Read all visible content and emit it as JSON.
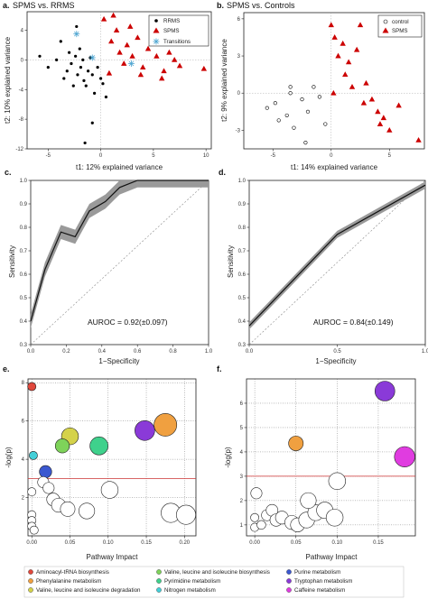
{
  "panels": {
    "a": {
      "label": "a.",
      "title": "SPMS vs. RRMS",
      "xlabel": "t1: 12% explained variance",
      "ylabel": "t2: 10% explained variance",
      "legend": [
        "RRMS",
        "SPMS",
        "Transitions"
      ]
    },
    "b": {
      "label": "b.",
      "title": "SPMS vs. Controls",
      "xlabel": "t1: 14% explained variance",
      "ylabel": "t2: 9% explained variance",
      "legend": [
        "control",
        "SPMS"
      ]
    },
    "c": {
      "label": "c.",
      "xlabel": "1−Specificity",
      "ylabel": "Sensitivity",
      "auroc": "AUROC = 0.92(±0.097)"
    },
    "d": {
      "label": "d.",
      "xlabel": "1−Specificity",
      "ylabel": "Sensitivity",
      "auroc": "AUROC = 0.84(±0.149)"
    },
    "e": {
      "label": "e.",
      "xlabel": "Pathway Impact",
      "ylabel": "-log(p)"
    },
    "f": {
      "label": "f.",
      "xlabel": "Pathway Impact",
      "ylabel": "-log(p)"
    }
  },
  "pathway_legend": [
    {
      "label": "Aminoacyl-tRNA biosynthesis",
      "color": "#e0483c"
    },
    {
      "label": "Phenylalanine metabolism",
      "color": "#f0a040"
    },
    {
      "label": "Valine, leucine and isoleucine degradation",
      "color": "#d4d24a"
    },
    {
      "label": "Valine, leucine and isoleucine biosynthesis",
      "color": "#7ed35a"
    },
    {
      "label": "Pyrimidine metabolism",
      "color": "#3fd18c"
    },
    {
      "label": "Nitrogen metabolism",
      "color": "#43cfd8"
    },
    {
      "label": "Purine metabolism",
      "color": "#3b58d0"
    },
    {
      "label": "Tryptophan metabolism",
      "color": "#8a3ad8"
    },
    {
      "label": "Caffeine metabolism",
      "color": "#e03ce0"
    }
  ],
  "chart_data": [
    {
      "id": "a",
      "type": "scatter",
      "title": "SPMS vs. RRMS",
      "xlabel": "t1: 12% explained variance",
      "ylabel": "t2: 10% explained variance",
      "xlim": [
        -7,
        10.5
      ],
      "ylim": [
        -12,
        6.5
      ],
      "xticks": [
        -5,
        0,
        5,
        10
      ],
      "yticks": [
        4,
        0,
        -4,
        -8,
        -12
      ],
      "legend_position": "top-right",
      "series": [
        {
          "name": "RRMS",
          "marker": "dot",
          "color": "#000000",
          "points": [
            [
              -5.8,
              0.5
            ],
            [
              -5,
              -1
            ],
            [
              -4.2,
              0
            ],
            [
              -3.8,
              2.5
            ],
            [
              -3.5,
              -2.5
            ],
            [
              -3.2,
              -1.5
            ],
            [
              -3,
              1
            ],
            [
              -2.8,
              -0.5
            ],
            [
              -2.6,
              -3.5
            ],
            [
              -2.4,
              0.5
            ],
            [
              -2.2,
              -2
            ],
            [
              -2,
              1.5
            ],
            [
              -1.9,
              -1
            ],
            [
              -1.7,
              0
            ],
            [
              -1.6,
              -2.8
            ],
            [
              -1.4,
              -3.5
            ],
            [
              -1.2,
              -1.5
            ],
            [
              -1,
              0.3
            ],
            [
              -0.8,
              -2
            ],
            [
              -0.6,
              -4.5
            ],
            [
              -0.3,
              -1
            ],
            [
              0,
              -2.5
            ],
            [
              0.2,
              -3.2
            ],
            [
              0.5,
              -5
            ],
            [
              -2.3,
              4.5
            ],
            [
              -1.5,
              -11.2
            ],
            [
              -0.8,
              -8.5
            ]
          ]
        },
        {
          "name": "SPMS",
          "marker": "triangle",
          "color": "#cc0000",
          "points": [
            [
              0.3,
              5.5
            ],
            [
              1,
              2.5
            ],
            [
              1.5,
              4
            ],
            [
              1.8,
              1
            ],
            [
              2.2,
              -0.5
            ],
            [
              2.5,
              2
            ],
            [
              2.8,
              4.5
            ],
            [
              3,
              0.5
            ],
            [
              3.5,
              3
            ],
            [
              4,
              -1
            ],
            [
              4.5,
              1.5
            ],
            [
              5,
              3.5
            ],
            [
              5.3,
              0.5
            ],
            [
              6,
              -1.5
            ],
            [
              6.5,
              1
            ],
            [
              7,
              0
            ],
            [
              7.5,
              -0.8
            ],
            [
              9.8,
              -1.2
            ],
            [
              1.2,
              6
            ],
            [
              0.8,
              -1.8
            ],
            [
              3.8,
              -2
            ],
            [
              5.8,
              -2.5
            ]
          ]
        },
        {
          "name": "Transitions",
          "marker": "asterisk",
          "color": "#4aa3d0",
          "points": [
            [
              -2.3,
              3.5
            ],
            [
              -0.8,
              0.3
            ],
            [
              2.9,
              -0.5
            ]
          ]
        }
      ]
    },
    {
      "id": "b",
      "type": "scatter",
      "title": "SPMS vs. Controls",
      "xlabel": "t1: 14% explained variance",
      "ylabel": "t2: 9% explained variance",
      "xlim": [
        -7.5,
        8
      ],
      "ylim": [
        -4.5,
        6.5
      ],
      "xticks": [
        -5,
        0,
        5
      ],
      "yticks": [
        6,
        3,
        0,
        -3
      ],
      "legend_position": "top-right",
      "series": [
        {
          "name": "control",
          "marker": "open-circle",
          "color": "#000000",
          "points": [
            [
              -5.5,
              -1.2
            ],
            [
              -4.8,
              -0.8
            ],
            [
              -4.5,
              -2.2
            ],
            [
              -3.8,
              -1.8
            ],
            [
              -3.5,
              0
            ],
            [
              -3.2,
              -2.8
            ],
            [
              -2.5,
              -0.5
            ],
            [
              -2,
              -1.5
            ],
            [
              -1.5,
              0.5
            ],
            [
              -1,
              -0.3
            ],
            [
              -0.5,
              -2.5
            ],
            [
              -3.5,
              0.5
            ],
            [
              -2.2,
              -4
            ]
          ]
        },
        {
          "name": "SPMS",
          "marker": "triangle",
          "color": "#cc0000",
          "points": [
            [
              0,
              5.5
            ],
            [
              0.3,
              4.5
            ],
            [
              0.6,
              3
            ],
            [
              1,
              4
            ],
            [
              1.2,
              1.5
            ],
            [
              1.5,
              2.5
            ],
            [
              1.8,
              0.5
            ],
            [
              2.2,
              3.5
            ],
            [
              2.5,
              5.5
            ],
            [
              3,
              0.8
            ],
            [
              3.5,
              -0.5
            ],
            [
              4,
              -1.5
            ],
            [
              4.5,
              -2
            ],
            [
              5,
              -3
            ],
            [
              5.8,
              -1
            ],
            [
              0.2,
              0
            ],
            [
              7.5,
              -3.8
            ],
            [
              2.8,
              -0.8
            ],
            [
              4.2,
              -2.5
            ]
          ]
        }
      ]
    },
    {
      "id": "c",
      "type": "line",
      "xlabel": "1−Specificity",
      "ylabel": "Sensitivity",
      "xlim": [
        0,
        1
      ],
      "ylim": [
        0.3,
        1
      ],
      "xticks": [
        0.0,
        0.2,
        0.4,
        0.6,
        0.8,
        1.0
      ],
      "yticks": [
        1.0,
        0.9,
        0.8,
        0.7,
        0.6,
        0.5,
        0.4,
        0.3
      ],
      "series": [
        {
          "name": "",
          "x": [
            0,
            0.08,
            0.17,
            0.25,
            0.33,
            0.42,
            0.5,
            0.6,
            1.0
          ],
          "y": [
            0.4,
            0.62,
            0.78,
            0.76,
            0.87,
            0.91,
            0.97,
            1.0,
            1.0
          ],
          "band": 0.03
        }
      ],
      "reference_diagonal": true,
      "annotation": "AUROC = 0.92(±0.097)"
    },
    {
      "id": "d",
      "type": "line",
      "xlabel": "1−Specificity",
      "ylabel": "Sensitivity",
      "xlim": [
        0,
        1
      ],
      "ylim": [
        0.3,
        1
      ],
      "xticks": [
        0.0,
        0.5,
        1.0
      ],
      "yticks": [
        1.0,
        0.9,
        0.8,
        0.7,
        0.6,
        0.5,
        0.4,
        0.3
      ],
      "series": [
        {
          "name": "",
          "x": [
            0,
            0.5,
            1.0
          ],
          "y": [
            0.38,
            0.77,
            0.98
          ],
          "band": 0.015
        }
      ],
      "reference_diagonal": true,
      "annotation": "AUROC = 0.84(±0.149)"
    },
    {
      "id": "e",
      "type": "scatter",
      "xlabel": "Pathway Impact",
      "ylabel": "-log(p)",
      "xlim": [
        -0.005,
        0.215
      ],
      "ylim": [
        0,
        8.2
      ],
      "xticks": [
        0.0,
        0.05,
        0.1,
        0.15,
        0.2
      ],
      "yticks": [
        2,
        4,
        6,
        8
      ],
      "threshold": 3.0,
      "points": [
        {
          "x": 0.0,
          "y": 7.8,
          "size": 0.5,
          "color": "#e0483c"
        },
        {
          "x": 0.175,
          "y": 5.8,
          "size": 3.0,
          "color": "#f0a040"
        },
        {
          "x": 0.05,
          "y": 5.2,
          "size": 2.0,
          "color": "#d4d24a"
        },
        {
          "x": 0.04,
          "y": 4.7,
          "size": 1.5,
          "color": "#7ed35a"
        },
        {
          "x": 0.088,
          "y": 4.7,
          "size": 2.2,
          "color": "#3fd18c"
        },
        {
          "x": 0.002,
          "y": 4.2,
          "size": 0.5,
          "color": "#43cfd8"
        },
        {
          "x": 0.018,
          "y": 3.35,
          "size": 1.2,
          "color": "#3b58d0"
        },
        {
          "x": 0.148,
          "y": 5.5,
          "size": 2.5,
          "color": "#8a3ad8"
        },
        {
          "x": 0.0,
          "y": 2.3,
          "size": 0.5,
          "color": "#ffffff"
        },
        {
          "x": 0.0,
          "y": 1.1,
          "size": 0.5,
          "color": "#ffffff"
        },
        {
          "x": 0.0,
          "y": 0.8,
          "size": 0.5,
          "color": "#ffffff"
        },
        {
          "x": 0.0,
          "y": 0.5,
          "size": 0.5,
          "color": "#ffffff"
        },
        {
          "x": 0.003,
          "y": 0.3,
          "size": 0.5,
          "color": "#ffffff"
        },
        {
          "x": 0.015,
          "y": 2.8,
          "size": 1.0,
          "color": "#ffffff"
        },
        {
          "x": 0.022,
          "y": 2.5,
          "size": 1.0,
          "color": "#ffffff"
        },
        {
          "x": 0.028,
          "y": 1.9,
          "size": 1.3,
          "color": "#ffffff"
        },
        {
          "x": 0.035,
          "y": 1.6,
          "size": 1.5,
          "color": "#ffffff"
        },
        {
          "x": 0.047,
          "y": 1.4,
          "size": 1.6,
          "color": "#ffffff"
        },
        {
          "x": 0.072,
          "y": 1.3,
          "size": 1.8,
          "color": "#ffffff"
        },
        {
          "x": 0.102,
          "y": 2.4,
          "size": 2.0,
          "color": "#ffffff"
        },
        {
          "x": 0.182,
          "y": 1.2,
          "size": 2.4,
          "color": "#ffffff"
        },
        {
          "x": 0.202,
          "y": 1.1,
          "size": 2.4,
          "color": "#ffffff"
        }
      ]
    },
    {
      "id": "f",
      "type": "scatter",
      "xlabel": "Pathway Impact",
      "ylabel": "-log(p)",
      "xlim": [
        -0.01,
        0.195
      ],
      "ylim": [
        0.55,
        7.0
      ],
      "xticks": [
        0.0,
        0.05,
        0.1,
        0.15
      ],
      "yticks": [
        1,
        2,
        3,
        4,
        5,
        6
      ],
      "threshold": 3.0,
      "points": [
        {
          "x": 0.158,
          "y": 6.5,
          "size": 2.5,
          "color": "#8a3ad8"
        },
        {
          "x": 0.05,
          "y": 4.35,
          "size": 1.6,
          "color": "#f0a040"
        },
        {
          "x": 0.182,
          "y": 3.8,
          "size": 2.6,
          "color": "#e03ce0"
        },
        {
          "x": 0.002,
          "y": 2.3,
          "size": 1.0,
          "color": "#ffffff"
        },
        {
          "x": 0.0,
          "y": 1.3,
          "size": 0.5,
          "color": "#ffffff"
        },
        {
          "x": 0.0,
          "y": 0.9,
          "size": 0.5,
          "color": "#ffffff"
        },
        {
          "x": 0.008,
          "y": 1.0,
          "size": 0.6,
          "color": "#ffffff"
        },
        {
          "x": 0.015,
          "y": 1.4,
          "size": 1.0,
          "color": "#ffffff"
        },
        {
          "x": 0.021,
          "y": 1.6,
          "size": 1.1,
          "color": "#ffffff"
        },
        {
          "x": 0.026,
          "y": 1.2,
          "size": 1.2,
          "color": "#ffffff"
        },
        {
          "x": 0.033,
          "y": 1.3,
          "size": 1.3,
          "color": "#ffffff"
        },
        {
          "x": 0.045,
          "y": 1.1,
          "size": 1.5,
          "color": "#ffffff"
        },
        {
          "x": 0.052,
          "y": 1.0,
          "size": 1.5,
          "color": "#ffffff"
        },
        {
          "x": 0.063,
          "y": 1.2,
          "size": 1.8,
          "color": "#ffffff"
        },
        {
          "x": 0.074,
          "y": 1.5,
          "size": 1.8,
          "color": "#ffffff"
        },
        {
          "x": 0.085,
          "y": 1.6,
          "size": 1.9,
          "color": "#ffffff"
        },
        {
          "x": 0.097,
          "y": 1.3,
          "size": 2.0,
          "color": "#ffffff"
        },
        {
          "x": 0.065,
          "y": 2.0,
          "size": 1.8,
          "color": "#ffffff"
        },
        {
          "x": 0.1,
          "y": 2.8,
          "size": 2.0,
          "color": "#ffffff"
        }
      ]
    }
  ]
}
